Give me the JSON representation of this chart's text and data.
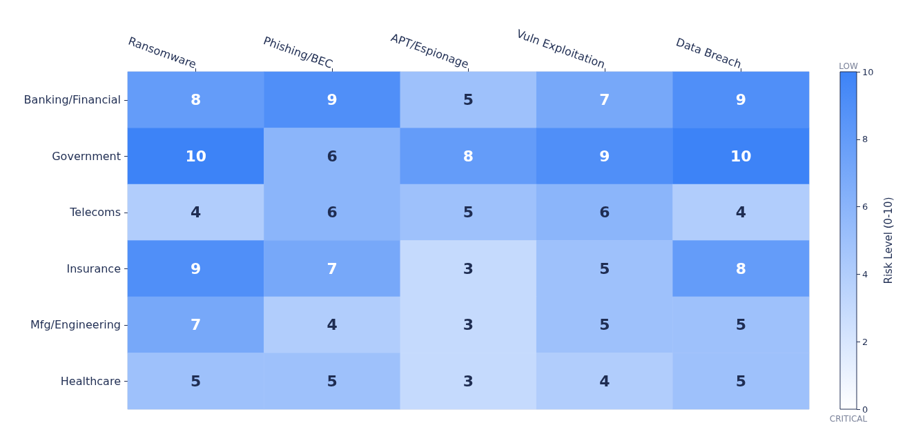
{
  "chart_data": {
    "type": "heatmap",
    "categories": [
      "Ransomware",
      "Phishing/BEC",
      "APT/Espionage",
      "Vuln Exploitation",
      "Data Breach"
    ],
    "y_categories": [
      "Banking/Financial",
      "Government",
      "Telecoms",
      "Insurance",
      "Mfg/Engineering",
      "Healthcare"
    ],
    "cells": [
      [
        8,
        9,
        5,
        7,
        9
      ],
      [
        10,
        6,
        8,
        9,
        10
      ],
      [
        4,
        6,
        5,
        6,
        4
      ],
      [
        9,
        7,
        3,
        5,
        8
      ],
      [
        7,
        4,
        3,
        5,
        5
      ],
      [
        5,
        5,
        3,
        4,
        5
      ]
    ],
    "data_labels": true,
    "clim": [
      0,
      10
    ],
    "cticks": [
      0,
      2,
      4,
      6,
      8,
      10
    ],
    "clabel": "Risk Level (0-10)",
    "annotations": [
      "LOW",
      "CRITICAL"
    ]
  }
}
